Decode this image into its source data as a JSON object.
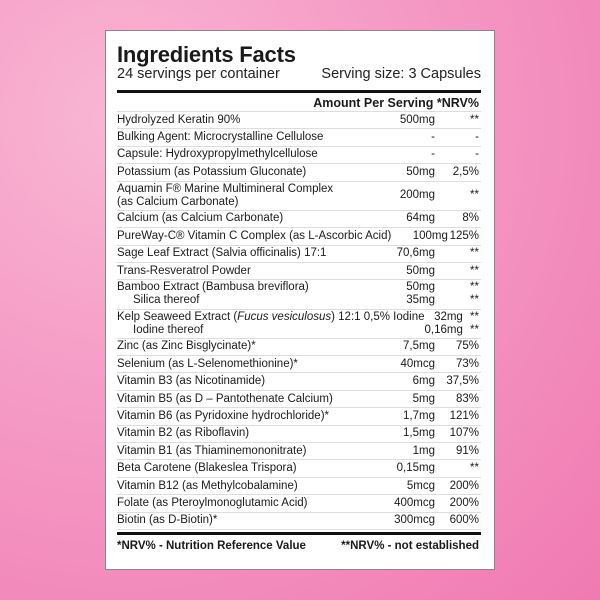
{
  "title": "Ingredients Facts",
  "servings": "24 servings per container",
  "serving_size": "Serving size: 3 Capsules",
  "header": "Amount Per Serving *NRV%",
  "rows": [
    {
      "name": "Hydrolyzed Keratin 90%",
      "amount": "500mg",
      "nrv": "**"
    },
    {
      "name": "Bulking Agent: Microcrystalline Cellulose",
      "amount": "-",
      "nrv": "-"
    },
    {
      "name": "Capsule: Hydroxypropylmethylcellulose",
      "amount": "-",
      "nrv": "-"
    },
    {
      "name": "Potassium (as Potassium Gluconate)",
      "amount": "50mg",
      "nrv": "2,5%"
    },
    {
      "name": "Aquamin F® Marine Multimineral Complex",
      "name2": "(as Calcium Carbonate)",
      "amount": "200mg",
      "nrv": "**"
    },
    {
      "name": "Calcium (as Calcium Carbonate)",
      "amount": "64mg",
      "nrv": "8%"
    },
    {
      "name": "PureWay-C® Vitamin C Complex (as L-Ascorbic Acid)",
      "amount": "100mg",
      "nrv": "125%"
    },
    {
      "name": "Sage Leaf Extract (Salvia officinalis) 17:1",
      "amount": "70,6mg",
      "nrv": "**"
    },
    {
      "name": "Trans-Resveratrol Powder",
      "amount": "50mg",
      "nrv": "**"
    },
    {
      "name": "Bamboo Extract (Bambusa breviflora)",
      "sub": "Silica thereof",
      "amount": "50mg",
      "amount2": "35mg",
      "nrv": "**",
      "nrv2": "**"
    },
    {
      "name_pre": "Kelp Seaweed Extract (",
      "name_it": "Fucus vesiculosus",
      "name_post": ") 12:1 0,5% Iodine",
      "sub": "Iodine thereof",
      "amount": "32mg",
      "amount2": "0,16mg",
      "nrv": "**",
      "nrv2": "**"
    },
    {
      "name": "Zinc (as Zinc Bisglycinate)*",
      "amount": "7,5mg",
      "nrv": "75%"
    },
    {
      "name": "Selenium (as L-Selenomethionine)*",
      "amount": "40mcg",
      "nrv": "73%"
    },
    {
      "name": "Vitamin B3 (as Nicotinamide)",
      "amount": "6mg",
      "nrv": "37,5%"
    },
    {
      "name": "Vitamin B5 (as D – Pantothenate Calcium)",
      "amount": "5mg",
      "nrv": "83%"
    },
    {
      "name": "Vitamin B6  (as Pyridoxine hydrochloride)*",
      "amount": "1,7mg",
      "nrv": "121%"
    },
    {
      "name": "Vitamin B2 (as Riboflavin)",
      "amount": "1,5mg",
      "nrv": "107%"
    },
    {
      "name": "Vitamin B1 (as Thiaminemononitrate)",
      "amount": "1mg",
      "nrv": "91%"
    },
    {
      "name": "Beta Carotene (Blakeslea Trispora)",
      "amount": "0,15mg",
      "nrv": "**"
    },
    {
      "name": "Vitamin B12  (as Methylcobalamine)",
      "amount": "5mcg",
      "nrv": "200%"
    },
    {
      "name": "Folate (as Pteroylmonoglutamic Acid)",
      "amount": "400mcg",
      "nrv": "200%"
    },
    {
      "name": "Biotin (as D-Biotin)*",
      "amount": "300mcg",
      "nrv": "600%"
    }
  ],
  "footer": {
    "left": "*NRV% - Nutrition Reference Value",
    "right": "**NRV% - not established"
  }
}
